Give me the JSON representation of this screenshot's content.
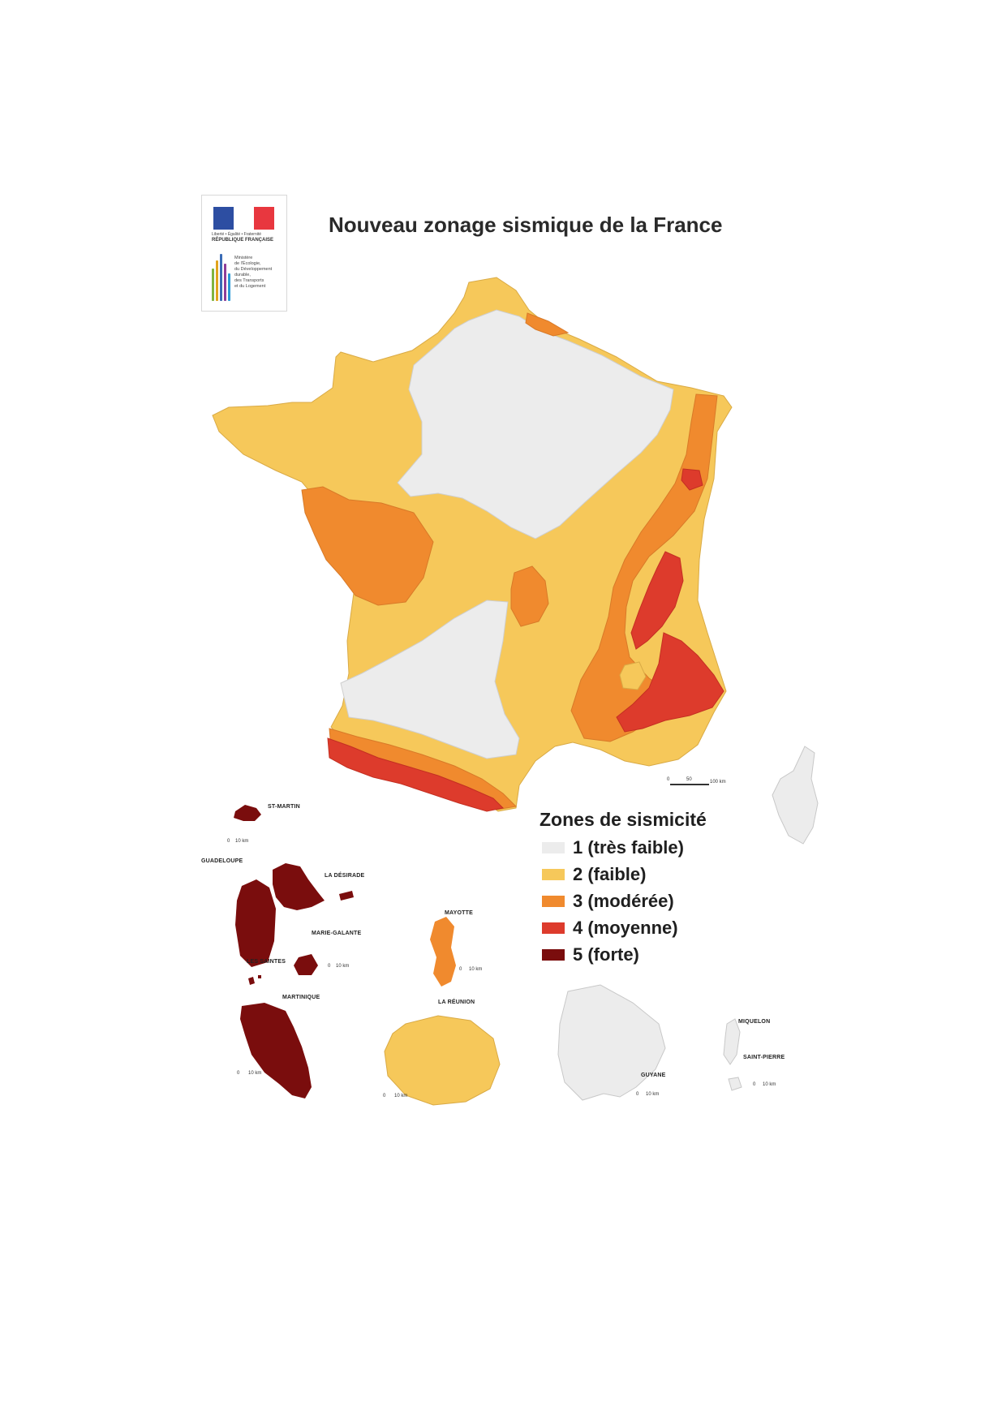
{
  "title": "Nouveau zonage sismique de la France",
  "logo": {
    "line1": "Liberté • Égalité • Fraternité",
    "line2": "RÉPUBLIQUE FRANÇAISE",
    "ministry_lines": [
      "Ministère",
      "de l'Écologie,",
      "du Développement",
      "durable,",
      "des Transports",
      "et du Logement"
    ]
  },
  "legend": {
    "title": "Zones de sismicité",
    "items": [
      {
        "label": "1 (très faible)",
        "color": "#ececec"
      },
      {
        "label": "2 (faible)",
        "color": "#f6c85a"
      },
      {
        "label": "3 (modérée)",
        "color": "#f08a2e"
      },
      {
        "label": "4 (moyenne)",
        "color": "#dd3b2c"
      },
      {
        "label": "5 (forte)",
        "color": "#7a0d0d"
      }
    ]
  },
  "territories": {
    "st_martin": "ST-MARTIN",
    "guadeloupe": "GUADELOUPE",
    "la_desirade": "LA DÉSIRADE",
    "marie_galante": "MARIE-GALANTE",
    "les_saintes": "LES SAINTES",
    "mayotte": "MAYOTTE",
    "martinique": "MARTINIQUE",
    "la_reunion": "LA RÉUNION",
    "guyane": "GUYANE",
    "miquelon": "MIQUELON",
    "saint_pierre": "SAINT-PIERRE"
  },
  "scales": {
    "metropole": [
      "0",
      "50",
      "100 km"
    ],
    "st_martin": [
      "0",
      "10 km"
    ],
    "guadeloupe": [
      "0",
      "10 km"
    ],
    "mayotte": [
      "0",
      "10 km"
    ],
    "martinique": [
      "0",
      "10 km"
    ],
    "reunion": [
      "0",
      "10 km"
    ],
    "guyane": [
      "0",
      "10 km"
    ],
    "spm": [
      "0",
      "10 km"
    ]
  }
}
